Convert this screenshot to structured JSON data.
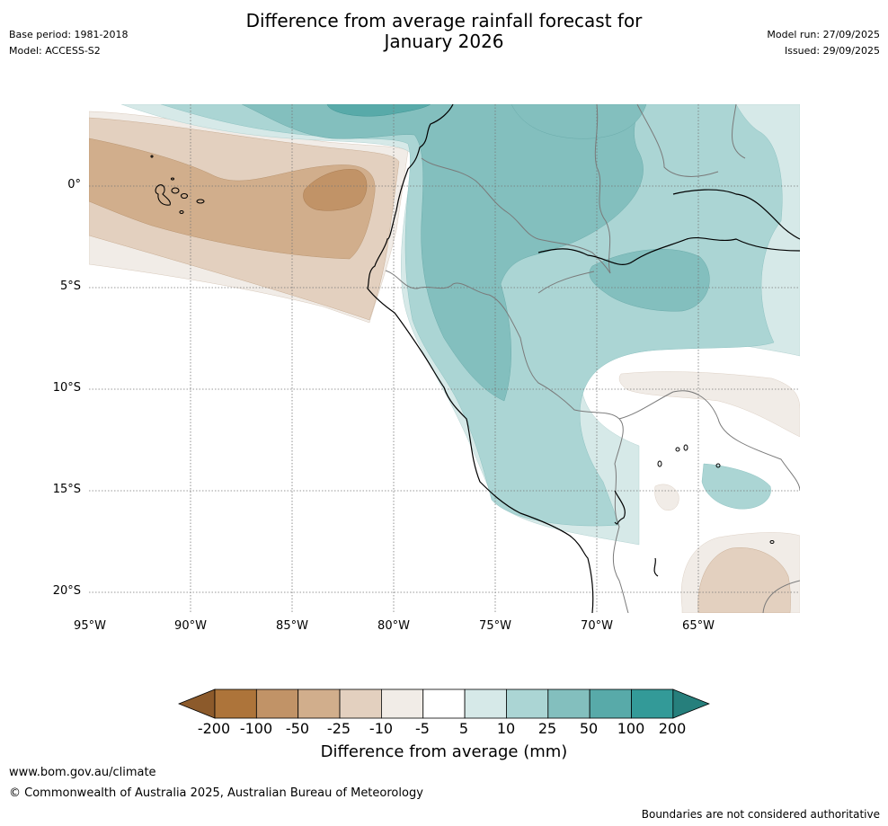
{
  "header": {
    "base_period": "Base period: 1981-2018",
    "model": "Model: ACCESS-S2",
    "title_line1": "Difference from average rainfall forecast for",
    "title_line2": "January 2026",
    "model_run": "Model run: 27/09/2025",
    "issued": "Issued: 29/09/2025"
  },
  "map": {
    "lat_labels": [
      "0°",
      "5°S",
      "10°S",
      "15°S",
      "20°S"
    ],
    "lon_labels": [
      "95°W",
      "90°W",
      "85°W",
      "80°W",
      "75°W",
      "70°W",
      "65°W"
    ]
  },
  "legend": {
    "ticks": [
      "-200",
      "-100",
      "-50",
      "-25",
      "-10",
      "-5",
      "5",
      "10",
      "25",
      "50",
      "100",
      "200"
    ],
    "label": "Difference from average (mm)",
    "colors": [
      "#8c5a2b",
      "#ad743a",
      "#c19367",
      "#d1ae8c",
      "#e3d0bf",
      "#f1ece7",
      "#ffffff",
      "#d6e9e8",
      "#abd5d4",
      "#83bfbe",
      "#58aaa9",
      "#339a98",
      "#267f7c"
    ]
  },
  "footer": {
    "website": "www.bom.gov.au/climate",
    "copyright": "© Commonwealth of Australia 2025, Australian Bureau of Meteorology",
    "disclaimer": "Boundaries are not considered authoritative"
  }
}
